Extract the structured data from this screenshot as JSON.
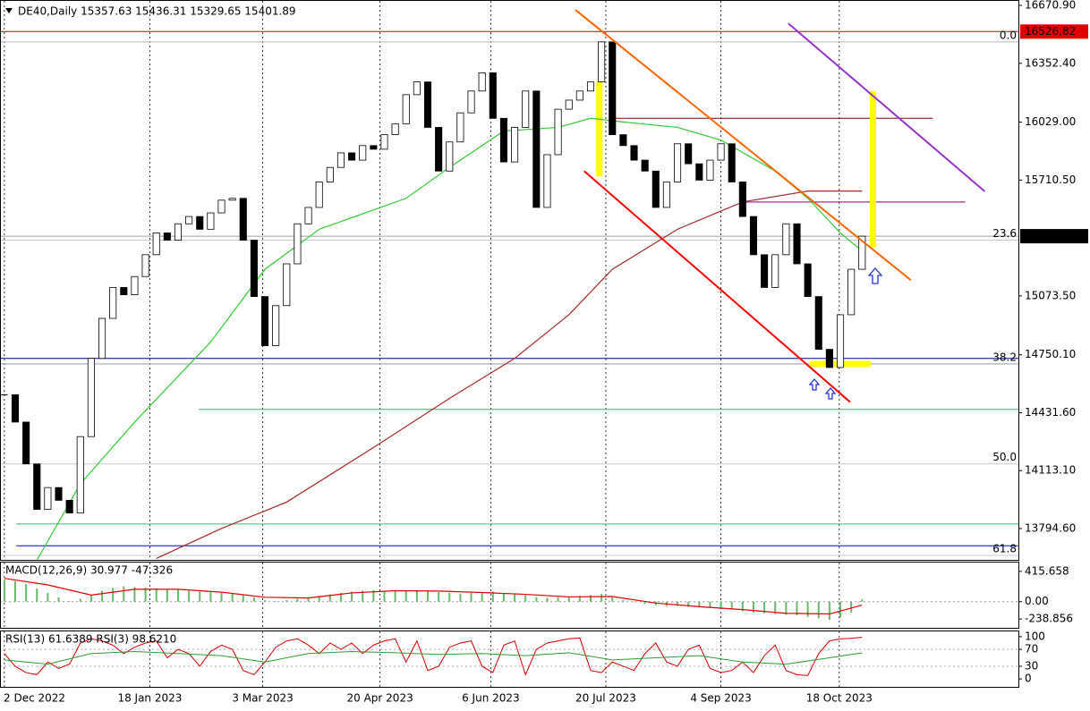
{
  "chart_data": [
    {
      "type": "candlestick",
      "title": "DE40,Daily  15357.63 15436.31 15329.65 15401.89",
      "closes": [
        14530,
        14380,
        14150,
        13900,
        14020,
        13950,
        13880,
        14300,
        14730,
        14950,
        15120,
        15080,
        15180,
        15300,
        15420,
        15380,
        15470,
        15510,
        15440,
        15530,
        15600,
        15610,
        15380,
        15070,
        14800,
        15020,
        15250,
        15470,
        15560,
        15700,
        15780,
        15860,
        15820,
        15900,
        15880,
        15960,
        16020,
        16180,
        16250,
        16000,
        15760,
        15920,
        16080,
        16200,
        16300,
        16050,
        15810,
        16000,
        16200,
        15560,
        15850,
        16100,
        16150,
        16200,
        16250,
        16470,
        15960,
        15900,
        15820,
        15760,
        15560,
        15700,
        15910,
        15800,
        15710,
        15820,
        15910,
        15700,
        15510,
        15300,
        15120,
        15300,
        15470,
        15250,
        15070,
        14780,
        14680,
        14970,
        15220,
        15401.89
      ],
      "xlim": [
        -0.4,
        93.4
      ],
      "ylim": [
        13622.5,
        16695.5
      ],
      "yticks": [
        {
          "value": 16670.9,
          "label": "16670.90"
        },
        {
          "value": 16352.4,
          "label": "16352.40"
        },
        {
          "value": 16029,
          "label": "16029.00"
        },
        {
          "value": 15710.5,
          "label": "15710.50"
        },
        {
          "value": 15073.5,
          "label": "15073.50"
        },
        {
          "value": 14750.1,
          "label": "14750.10"
        },
        {
          "value": 14431.6,
          "label": "14431.60"
        },
        {
          "value": 14113.1,
          "label": "14113.10"
        },
        {
          "value": 13794.6,
          "label": "13794.60"
        }
      ],
      "xticks": [
        {
          "value": 0,
          "label": "2 Dec 2022"
        },
        {
          "value": 13.4,
          "label": "18 Jan 2023"
        },
        {
          "value": 23.8,
          "label": "3 Mar 2023"
        },
        {
          "value": 34.6,
          "label": "20 Apr 2023"
        },
        {
          "value": 44.8,
          "label": "6 Jun 2023"
        },
        {
          "value": 55.4,
          "label": "20 Jul 2023"
        },
        {
          "value": 66,
          "label": "4 Sep 2023"
        },
        {
          "value": 76.9,
          "label": "18 Oct 2023"
        }
      ],
      "moving_averages": [
        {
          "color": "#33cc33",
          "x": [
            3,
            7,
            12,
            19,
            24,
            29,
            37,
            41,
            46,
            51,
            54,
            57,
            62,
            66,
            71,
            74,
            77,
            79
          ],
          "values": [
            13620,
            14040,
            14380,
            14820,
            15220,
            15440,
            15610,
            15780,
            15980,
            16000,
            16050,
            16030,
            16000,
            15930,
            15760,
            15610,
            15420,
            15320
          ]
        },
        {
          "color": "#a52a2a",
          "x": [
            14,
            20,
            26,
            34,
            41,
            47,
            52,
            56,
            62,
            68,
            74,
            79
          ],
          "values": [
            13630,
            13795,
            13940,
            14240,
            14510,
            14730,
            14970,
            15220,
            15440,
            15590,
            15650,
            15650
          ]
        }
      ],
      "levels": [
        {
          "value": 16526.82,
          "color": "#cc0000"
        },
        {
          "value": 16470,
          "color": "#a0a0a0"
        },
        {
          "value": 15401.89,
          "color": "#a0a0a0"
        },
        {
          "value": 15380,
          "color": "#a0a0a0"
        },
        {
          "value": 14730,
          "color": "#000080"
        },
        {
          "value": 14700,
          "color": "#000080"
        },
        {
          "value": 14450,
          "color": "#3cb371",
          "x": [
            17.9,
            93.4
          ]
        },
        {
          "value": 13820,
          "color": "#3cb371",
          "x": [
            1.1,
            93.4
          ]
        },
        {
          "value": 13700,
          "color": "#0000cd",
          "x": [
            1.1,
            93.4
          ]
        },
        {
          "value": 16050,
          "color": "#8b0000",
          "x": [
            55.7,
            85.5
          ]
        },
        {
          "value": 15590,
          "color": "#800080",
          "x": [
            68,
            88.5
          ]
        }
      ],
      "fib_levels": [
        {
          "value": 16470,
          "label": "0.0"
        },
        {
          "value": 15380,
          "label": "23.6"
        },
        {
          "value": 14700,
          "label": "38.2"
        },
        {
          "value": 14150,
          "label": "50.0"
        },
        {
          "value": 13647,
          "label": "61.8"
        }
      ],
      "trendlines": [
        {
          "color": "#ff6600",
          "x": [
            52.6,
            83.5
          ],
          "values": [
            16646,
            15160
          ]
        },
        {
          "color": "#ff0000",
          "x": [
            53.4,
            77.9
          ],
          "values": [
            15760,
            14490
          ]
        },
        {
          "color": "#9932cc",
          "x": [
            72.2,
            90.3
          ],
          "values": [
            16572,
            15648
          ]
        }
      ],
      "highlights": [
        {
          "color": "#ffff00",
          "x": [
            54.8,
            54.8
          ],
          "values": [
            16250,
            15730
          ]
        },
        {
          "color": "#ffff00",
          "x": [
            80,
            80
          ],
          "values": [
            16200,
            15340
          ]
        },
        {
          "color": "#ffff00",
          "x": [
            74.2,
            79.8
          ],
          "values": [
            14700,
            14700
          ]
        }
      ],
      "price_tags": [
        {
          "value": 16526.82,
          "color": "#e00000"
        },
        {
          "value": 15401.89,
          "color": "#000000"
        }
      ]
    },
    {
      "type": "macd",
      "title": "MACD(12,26,9) 30.977 -47.326",
      "histogram_color": "#66bb66",
      "histogram": [
        300,
        280,
        240,
        180,
        120,
        60,
        10,
        40,
        90,
        150,
        190,
        210,
        200,
        190,
        180,
        170,
        160,
        150,
        140,
        130,
        120,
        110,
        100,
        60,
        20,
        10,
        20,
        40,
        60,
        80,
        100,
        120,
        140,
        150,
        155,
        150,
        145,
        150,
        160,
        150,
        130,
        120,
        110,
        120,
        130,
        140,
        120,
        100,
        90,
        60,
        50,
        60,
        70,
        80,
        90,
        110,
        60,
        20,
        -10,
        -30,
        -50,
        -60,
        -60,
        -70,
        -80,
        -80,
        -90,
        -110,
        -130,
        -150,
        -160,
        -170,
        -180,
        -190,
        -210,
        -230,
        -250,
        -220,
        -150,
        30.977
      ],
      "signal": {
        "color": "#e00000",
        "x": [
          0,
          4,
          8,
          12,
          16,
          20,
          24,
          28,
          32,
          36,
          40,
          44,
          48,
          52,
          56,
          60,
          64,
          68,
          72,
          76,
          79
        ],
        "values": [
          320,
          230,
          90,
          170,
          170,
          130,
          60,
          50,
          120,
          150,
          145,
          125,
          100,
          65,
          70,
          -20,
          -70,
          -110,
          -160,
          -170,
          -47.326
        ]
      },
      "ylim": [
        -360,
        537
      ],
      "yticks": [
        415.658,
        {
          "value": 0,
          "label": "0.00"
        },
        -238.856
      ]
    },
    {
      "type": "rsi",
      "title": "RSI(13) 61.6389  RSI(3) 98.6210",
      "series": [
        {
          "color": "#d40000",
          "x": [
            0,
            1,
            2,
            3,
            4,
            5,
            6,
            7,
            8,
            9,
            10,
            11,
            12,
            13,
            14,
            15,
            16,
            17,
            18,
            19,
            20,
            21,
            22,
            23,
            24,
            25,
            26,
            27,
            28,
            29,
            30,
            31,
            32,
            33,
            34,
            35,
            36,
            37,
            38,
            39,
            40,
            41,
            42,
            43,
            44,
            45,
            46,
            47,
            48,
            49,
            50,
            51,
            52,
            53,
            54,
            55,
            56,
            57,
            58,
            59,
            60,
            61,
            62,
            63,
            64,
            65,
            66,
            67,
            68,
            69,
            70,
            71,
            72,
            73,
            74,
            75,
            76,
            77,
            78,
            79
          ],
          "values": [
            60,
            30,
            15,
            10,
            40,
            25,
            35,
            85,
            95,
            90,
            80,
            60,
            75,
            85,
            90,
            50,
            70,
            60,
            30,
            65,
            80,
            70,
            20,
            10,
            40,
            75,
            90,
            95,
            80,
            60,
            85,
            70,
            85,
            60,
            80,
            90,
            95,
            40,
            90,
            20,
            30,
            75,
            85,
            90,
            30,
            15,
            80,
            90,
            10,
            70,
            85,
            90,
            95,
            97,
            20,
            15,
            40,
            30,
            20,
            60,
            85,
            40,
            30,
            70,
            80,
            25,
            15,
            20,
            40,
            15,
            55,
            80,
            20,
            10,
            8,
            60,
            90,
            95,
            96,
            98.621
          ]
        },
        {
          "color": "#2ca02c",
          "x": [
            0,
            4,
            8,
            12,
            16,
            20,
            24,
            28,
            32,
            36,
            40,
            44,
            48,
            52,
            56,
            60,
            64,
            68,
            72,
            76,
            79
          ],
          "values": [
            45,
            35,
            60,
            65,
            60,
            55,
            40,
            60,
            65,
            62,
            58,
            60,
            55,
            62,
            45,
            50,
            55,
            40,
            35,
            50,
            61.6389
          ]
        }
      ],
      "ylim": [
        -18.75,
        112.5
      ],
      "yticks": [
        100,
        70,
        30,
        0
      ],
      "grid_levels": [
        70,
        30
      ]
    }
  ]
}
